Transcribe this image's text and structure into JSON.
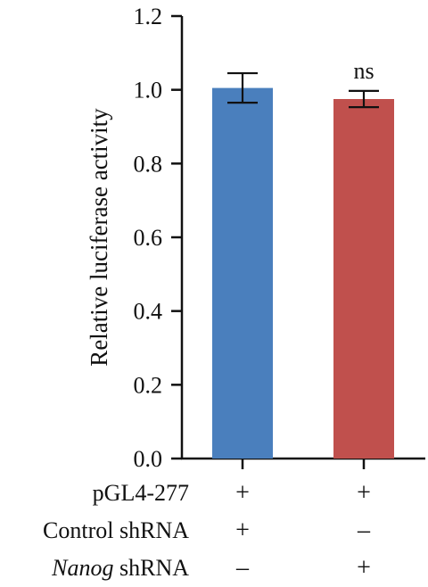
{
  "chart_data": {
    "type": "bar",
    "title": "",
    "xlabel": "",
    "ylabel": "Relative luciferase activity",
    "ylim": [
      0,
      1.2
    ],
    "yticks": [
      "0.0",
      "0.2",
      "0.4",
      "0.6",
      "0.8",
      "1.0",
      "1.2"
    ],
    "grid": false,
    "bars": [
      {
        "value": 1.005,
        "error": 0.04,
        "color": "#4a7fbd",
        "annotation": ""
      },
      {
        "value": 0.975,
        "error": 0.022,
        "color": "#c0504d",
        "annotation": "ns"
      }
    ],
    "condition_rows": [
      {
        "label": "pGL4-277",
        "italic_prefix": "",
        "symbols": [
          "+",
          "+"
        ]
      },
      {
        "label": " shRNA",
        "prefix_plain": "Control",
        "italic_prefix": "",
        "symbols": [
          "+",
          "–"
        ]
      },
      {
        "label": " shRNA",
        "prefix_plain": "",
        "italic_prefix": "Nanog",
        "symbols": [
          "–",
          "+"
        ]
      }
    ]
  }
}
